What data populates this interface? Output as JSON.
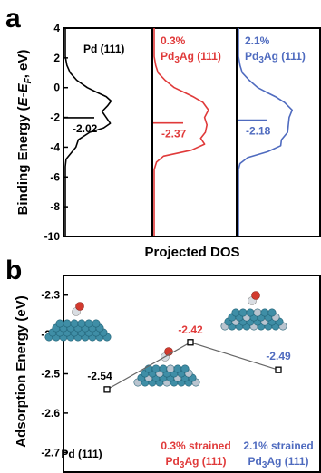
{
  "chart_data": [
    {
      "panel": "a",
      "type": "line",
      "xlabel": "Projected DOS",
      "ylabel": "Binding Energy (E-E_F, eV)",
      "ylim": [
        -10,
        4
      ],
      "yticks": [
        "4",
        "2",
        "0",
        "-2",
        "-4",
        "-6",
        "-8",
        "-10"
      ],
      "panels": [
        {
          "label_line1": "Pd (111)",
          "label_line2": "",
          "color": "#000000",
          "d_band_center_label": "-2.02",
          "d_band_center": -2.02,
          "dos_profile": [
            [
              4,
              0
            ],
            [
              2.1,
              0
            ],
            [
              1.5,
              0.02
            ],
            [
              1.0,
              0.06
            ],
            [
              0.5,
              0.14
            ],
            [
              0.0,
              0.27
            ],
            [
              -0.3,
              0.38
            ],
            [
              -0.6,
              0.5
            ],
            [
              -0.9,
              0.56
            ],
            [
              -1.2,
              0.52
            ],
            [
              -1.6,
              0.45
            ],
            [
              -2.0,
              0.5
            ],
            [
              -2.4,
              0.55
            ],
            [
              -2.7,
              0.47
            ],
            [
              -3.0,
              0.3
            ],
            [
              -3.5,
              0.16
            ],
            [
              -4.0,
              0.13
            ],
            [
              -4.4,
              0.07
            ],
            [
              -4.8,
              0.01
            ],
            [
              -5.3,
              0
            ],
            [
              -10,
              0
            ]
          ]
        },
        {
          "label_line1": "0.3%",
          "label_line2": "Pd3Ag (111)",
          "color": "#e03a3a",
          "d_band_center_label": "-2.37",
          "d_band_center": -2.37,
          "dos_profile": [
            [
              4,
              0
            ],
            [
              2.1,
              0
            ],
            [
              1.5,
              0.02
            ],
            [
              1.0,
              0.05
            ],
            [
              0.5,
              0.14
            ],
            [
              0.0,
              0.26
            ],
            [
              -0.3,
              0.38
            ],
            [
              -0.6,
              0.5
            ],
            [
              -1.0,
              0.63
            ],
            [
              -1.5,
              0.7
            ],
            [
              -2.0,
              0.65
            ],
            [
              -2.5,
              0.68
            ],
            [
              -3.0,
              0.66
            ],
            [
              -3.4,
              0.6
            ],
            [
              -3.8,
              0.65
            ],
            [
              -4.2,
              0.48
            ],
            [
              -4.6,
              0.12
            ],
            [
              -5.0,
              0.03
            ],
            [
              -5.5,
              0
            ],
            [
              -10,
              0
            ]
          ]
        },
        {
          "label_line1": "2.1%",
          "label_line2": "Pd3Ag (111)",
          "color": "#4f6bbf",
          "d_band_center_label": "-2.18",
          "d_band_center": -2.18,
          "dos_profile": [
            [
              4,
              0
            ],
            [
              2.1,
              0
            ],
            [
              1.5,
              0.02
            ],
            [
              1.0,
              0.05
            ],
            [
              0.5,
              0.14
            ],
            [
              0.0,
              0.25
            ],
            [
              -0.3,
              0.36
            ],
            [
              -0.6,
              0.48
            ],
            [
              -1.0,
              0.6
            ],
            [
              -1.5,
              0.7
            ],
            [
              -2.0,
              0.66
            ],
            [
              -2.5,
              0.65
            ],
            [
              -3.0,
              0.64
            ],
            [
              -3.5,
              0.56
            ],
            [
              -3.9,
              0.55
            ],
            [
              -4.3,
              0.38
            ],
            [
              -4.7,
              0.12
            ],
            [
              -5.1,
              0.02
            ],
            [
              -5.5,
              0
            ],
            [
              -10,
              0
            ]
          ]
        }
      ]
    },
    {
      "panel": "b",
      "type": "line",
      "ylabel": "Adsorption Energy (eV)",
      "ylim": [
        -2.75,
        -2.25
      ],
      "yticks": [
        "-2.3",
        "-2.4",
        "-2.5",
        "-2.6",
        "-2.7"
      ],
      "categories": [
        {
          "line1": "Pd (111)",
          "line2": "",
          "color": "#000000"
        },
        {
          "line1": "0.3% strained",
          "line2": "Pd3Ag (111)",
          "color": "#e03a3a"
        },
        {
          "line1": "2.1% strained",
          "line2": "Pd3Ag (111)",
          "color": "#4f6bbf"
        }
      ],
      "values": [
        -2.54,
        -2.42,
        -2.49
      ],
      "value_labels": [
        "-2.54",
        "-2.42",
        "-2.49"
      ],
      "label_colors": [
        "#000000",
        "#e03a3a",
        "#4f6bbf"
      ]
    }
  ],
  "panel_letters": [
    "a",
    "b"
  ]
}
